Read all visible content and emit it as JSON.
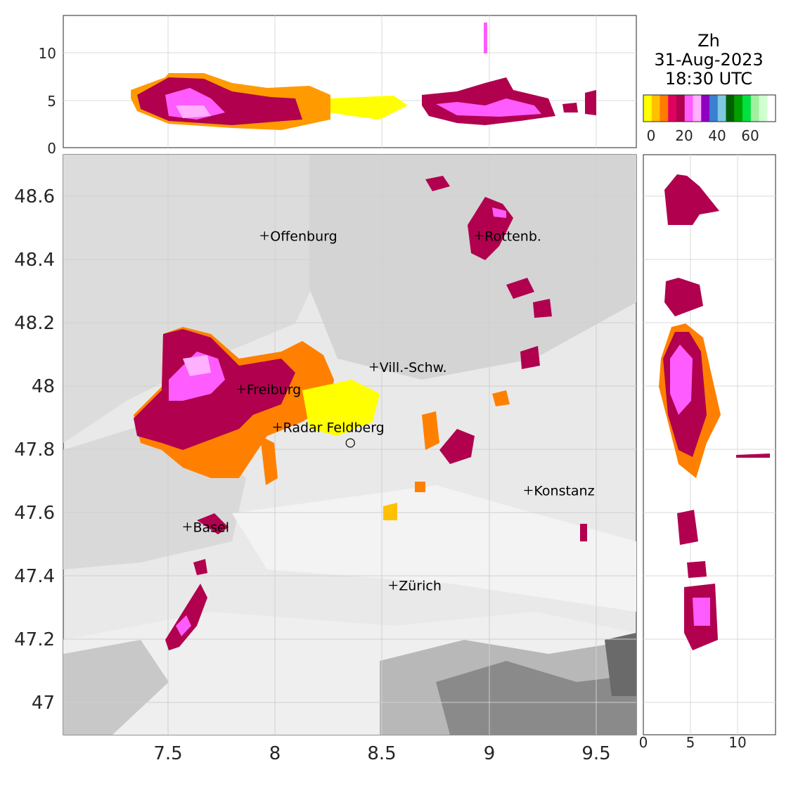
{
  "title": {
    "variable": "Zh",
    "date": "31-Aug-2023",
    "time": "18:30 UTC"
  },
  "colorbar": {
    "colors": [
      "#ffff00",
      "#ffc000",
      "#ff7a00",
      "#e00060",
      "#b0004e",
      "#ff5cff",
      "#ffb0ff",
      "#9000c0",
      "#3a7fd0",
      "#80c8e0",
      "#006000",
      "#00a000",
      "#00e040",
      "#a0f0a0",
      "#d0ffd0",
      "#ffffff"
    ],
    "tick_labels": [
      "0",
      "20",
      "40",
      "60"
    ]
  },
  "map": {
    "x_ticks": [
      "7.5",
      "8",
      "8.5",
      "9",
      "9.5"
    ],
    "y_ticks": [
      "48.6",
      "48.4",
      "48.2",
      "48",
      "47.8",
      "47.6",
      "47.4",
      "47.2",
      "47"
    ],
    "cities": [
      {
        "name": "Offenburg",
        "lon": 7.95,
        "lat": 48.475
      },
      {
        "name": "Rottenb.",
        "lon": 8.95,
        "lat": 48.475
      },
      {
        "name": "Vill.-Schw.",
        "lon": 8.46,
        "lat": 48.06
      },
      {
        "name": "Freiburg",
        "lon": 7.84,
        "lat": 47.99
      },
      {
        "name": "Radar Feldberg",
        "lon": 8.01,
        "lat": 47.87
      },
      {
        "name": "Konstanz",
        "lon": 9.18,
        "lat": 47.67
      },
      {
        "name": "Basel",
        "lon": 7.59,
        "lat": 47.555
      },
      {
        "name": "Zürich",
        "lon": 8.55,
        "lat": 47.37
      }
    ],
    "radar_site": {
      "lon": 8.35,
      "lat": 47.82
    }
  },
  "top_panel": {
    "y_ticks": [
      "0",
      "5",
      "10"
    ]
  },
  "side_panel": {
    "x_ticks": [
      "0",
      "5",
      "10"
    ]
  }
}
